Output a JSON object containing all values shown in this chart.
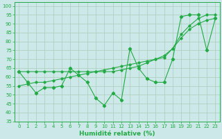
{
  "xlabel": "Humidité relative (%)",
  "bg_color": "#cce8e8",
  "grid_color": "#aaccbb",
  "line_color": "#22aa44",
  "x_data": [
    0,
    1,
    2,
    3,
    4,
    5,
    6,
    7,
    8,
    9,
    10,
    11,
    12,
    13,
    14,
    15,
    16,
    17,
    18,
    19,
    20,
    21,
    22,
    23
  ],
  "y_main": [
    63,
    57,
    51,
    54,
    54,
    55,
    65,
    61,
    57,
    48,
    44,
    51,
    47,
    76,
    65,
    59,
    57,
    57,
    70,
    94,
    95,
    95,
    75,
    93
  ],
  "y_line1": [
    55,
    56,
    57,
    57,
    58,
    59,
    60,
    61,
    62,
    63,
    64,
    65,
    66,
    67,
    68,
    69,
    70,
    71,
    76,
    82,
    87,
    90,
    92,
    93
  ],
  "y_line2": [
    63,
    63,
    63,
    63,
    63,
    63,
    63,
    63,
    63,
    63,
    63,
    63,
    64,
    65,
    66,
    68,
    70,
    72,
    76,
    84,
    89,
    93,
    95,
    95
  ],
  "ylim": [
    35,
    102
  ],
  "xlim": [
    -0.5,
    23.5
  ],
  "yticks": [
    35,
    40,
    45,
    50,
    55,
    60,
    65,
    70,
    75,
    80,
    85,
    90,
    95,
    100
  ],
  "xticks": [
    0,
    1,
    2,
    3,
    4,
    5,
    6,
    7,
    8,
    9,
    10,
    11,
    12,
    13,
    14,
    15,
    16,
    17,
    18,
    19,
    20,
    21,
    22,
    23
  ],
  "tick_fontsize": 5.0,
  "xlabel_fontsize": 6.5,
  "markersize": 2.2,
  "linewidth": 0.8
}
